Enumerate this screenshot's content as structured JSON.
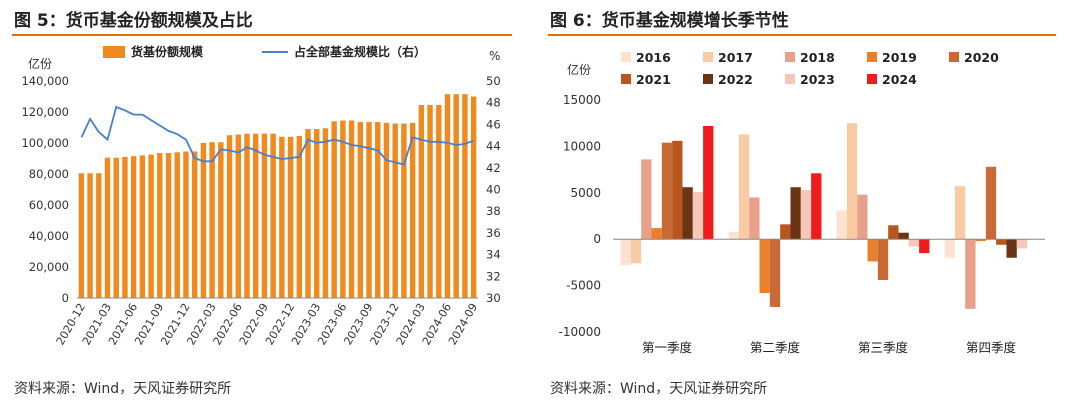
{
  "panels": {
    "left": {
      "title": "图 5：货币基金份额规模及占比",
      "source": "资料来源：Wind，天风证券研究所"
    },
    "right": {
      "title": "图 6：货币基金规模增长季节性",
      "source": "资料来源：Wind，天风证券研究所"
    }
  },
  "colors": {
    "accent": "#e46c0a",
    "bar": "#f0891e",
    "line": "#4a7fc9"
  },
  "chart_data": [
    {
      "type": "bar+line",
      "left_unit": "亿份",
      "right_unit": "%",
      "ylim": [
        0,
        140000
      ],
      "y2lim": [
        30,
        50
      ],
      "yticks": [
        "0",
        "20,000",
        "40,000",
        "60,000",
        "80,000",
        "100,000",
        "120,000",
        "140,000"
      ],
      "y2ticks": [
        "30",
        "32",
        "34",
        "36",
        "38",
        "40",
        "42",
        "44",
        "46",
        "48",
        "50"
      ],
      "x_tick_labels": [
        "2020-12",
        "2021-03",
        "2021-06",
        "2021-09",
        "2021-12",
        "2022-03",
        "2022-06",
        "2022-09",
        "2022-12",
        "2023-03",
        "2023-06",
        "2023-09",
        "2023-12",
        "2024-03",
        "2024-06",
        "2024-09"
      ],
      "series": [
        {
          "name": "货基份额规模",
          "kind": "bar",
          "axis": "left",
          "values": [
            80500,
            80500,
            80500,
            90500,
            90500,
            91000,
            91500,
            92000,
            92500,
            93500,
            93500,
            94000,
            94500,
            94500,
            100000,
            100500,
            100500,
            105000,
            105500,
            106000,
            106000,
            106000,
            106000,
            104000,
            104000,
            104500,
            109000,
            109000,
            109500,
            114000,
            114500,
            114500,
            113500,
            113500,
            113500,
            113000,
            112500,
            112500,
            113000,
            124500,
            124500,
            124500,
            131500,
            131500,
            131500,
            130000
          ]
        },
        {
          "name": "占全部基金规模比（右）",
          "kind": "line",
          "axis": "right",
          "values": [
            44.8,
            46.5,
            45.3,
            44.6,
            47.6,
            47.3,
            46.9,
            46.9,
            46.4,
            45.9,
            45.4,
            45.1,
            44.6,
            42.9,
            42.6,
            42.6,
            43.7,
            43.6,
            43.4,
            43.9,
            43.6,
            43.2,
            43.0,
            42.8,
            42.9,
            43.0,
            44.6,
            44.3,
            44.4,
            44.6,
            44.4,
            44.1,
            44.0,
            43.8,
            43.6,
            42.7,
            42.5,
            42.3,
            44.8,
            44.6,
            44.4,
            44.4,
            44.3,
            44.1,
            44.2,
            44.5
          ]
        }
      ]
    },
    {
      "type": "bar",
      "y_unit": "亿份",
      "categories": [
        "第一季度",
        "第二季度",
        "第三季度",
        "第四季度"
      ],
      "ylim": [
        -10000,
        15000
      ],
      "yticks": [
        "-10000",
        "-5000",
        "0",
        "5000",
        "10000",
        "15000"
      ],
      "series": [
        {
          "name": "2016",
          "color": "#fde3cf",
          "values": [
            -2800,
            800,
            3100,
            -2000
          ]
        },
        {
          "name": "2017",
          "color": "#f9cba5",
          "values": [
            -2600,
            11300,
            12500,
            5700
          ]
        },
        {
          "name": "2018",
          "color": "#e9a08a",
          "values": [
            8600,
            4500,
            4800,
            -7500
          ]
        },
        {
          "name": "2019",
          "color": "#e8802e",
          "values": [
            1200,
            -5800,
            -2400,
            -200
          ]
        },
        {
          "name": "2020",
          "color": "#c96a36",
          "values": [
            10400,
            -7300,
            -4400,
            7800
          ]
        },
        {
          "name": "2021",
          "color": "#b8561f",
          "values": [
            10600,
            1600,
            1500,
            -600
          ]
        },
        {
          "name": "2022",
          "color": "#6b3414",
          "values": [
            5600,
            5600,
            700,
            -2000
          ]
        },
        {
          "name": "2023",
          "color": "#f6c7b8",
          "values": [
            5100,
            5300,
            -800,
            -1000
          ]
        },
        {
          "name": "2024",
          "color": "#ee1c1c",
          "values": [
            12200,
            7100,
            -1500,
            null
          ]
        }
      ]
    }
  ]
}
